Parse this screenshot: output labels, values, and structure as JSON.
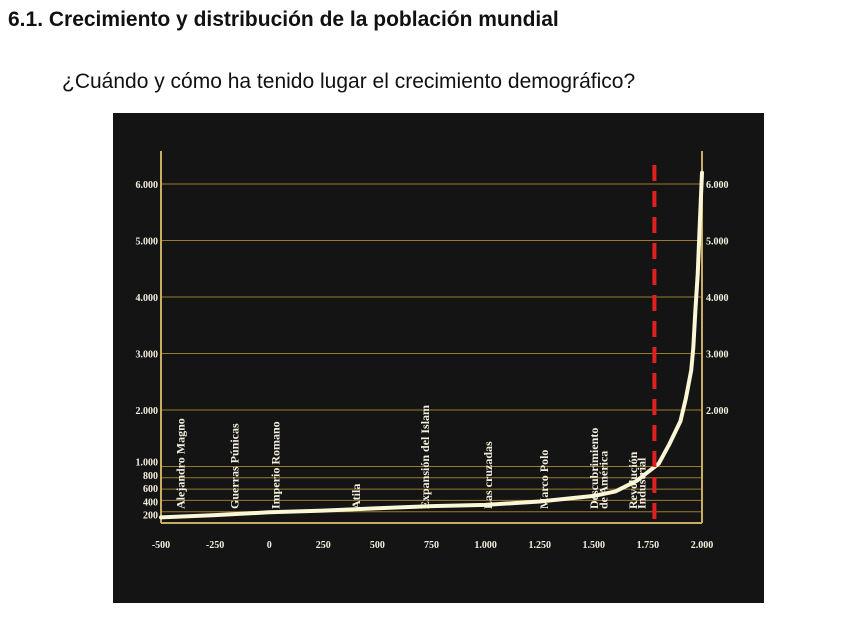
{
  "slide": {
    "title": "6.1. Crecimiento y distribución de la población mundial",
    "subtitle": "¿Cuándo y cómo ha tenido lugar el crecimiento demográfico?"
  },
  "colors": {
    "panel_background": "#141414",
    "gridline": "#9a7b2c",
    "axis": "#c9ad62",
    "curve": "#fbf6d6",
    "marker_line": "#e02020",
    "text": "#f3efdf"
  },
  "chart_data": {
    "type": "line",
    "title": "",
    "xlabel": "",
    "ylabel": "",
    "xlim": [
      -500,
      2000
    ],
    "ylim": [
      0,
      6500
    ],
    "grid": true,
    "x_ticks": [
      {
        "value": -500,
        "label": "-500"
      },
      {
        "value": -250,
        "label": "-250"
      },
      {
        "value": 0,
        "label": "0"
      },
      {
        "value": 250,
        "label": "250"
      },
      {
        "value": 500,
        "label": "500"
      },
      {
        "value": 750,
        "label": "750"
      },
      {
        "value": 1000,
        "label": "1.000"
      },
      {
        "value": 1250,
        "label": "1.250"
      },
      {
        "value": 1500,
        "label": "1.500"
      },
      {
        "value": 1750,
        "label": "1.750"
      },
      {
        "value": 2000,
        "label": "2.000"
      }
    ],
    "y_ticks_left": [
      {
        "value": 200,
        "label": "200"
      },
      {
        "value": 400,
        "label": "400"
      },
      {
        "value": 600,
        "label": "600"
      },
      {
        "value": 800,
        "label": "800"
      },
      {
        "value": 1000,
        "label": "1.000"
      },
      {
        "value": 2000,
        "label": "2.000"
      },
      {
        "value": 3000,
        "label": "3.000"
      },
      {
        "value": 4000,
        "label": "4.000"
      },
      {
        "value": 5000,
        "label": "5.000"
      },
      {
        "value": 6000,
        "label": "6.000"
      }
    ],
    "y_ticks_right": [
      {
        "value": 2000,
        "label": "2.000"
      },
      {
        "value": 3000,
        "label": "3.000"
      },
      {
        "value": 4000,
        "label": "4.000"
      },
      {
        "value": 5000,
        "label": "5.000"
      },
      {
        "value": 6000,
        "label": "6.000"
      }
    ],
    "gridlines_y": [
      200,
      400,
      600,
      800,
      1000,
      2000,
      3000,
      4000,
      5000,
      6000
    ],
    "series": [
      {
        "x": [
          -500,
          -250,
          0,
          250,
          500,
          750,
          1000,
          1250,
          1500,
          1600,
          1700,
          1750,
          1800,
          1850,
          1900,
          1925,
          1950,
          1960,
          1970,
          1980,
          1990,
          2000
        ],
        "values": [
          100,
          140,
          190,
          220,
          260,
          300,
          320,
          380,
          480,
          560,
          750,
          900,
          1050,
          1400,
          1800,
          2200,
          2700,
          3100,
          3800,
          4400,
          5300,
          6200
        ]
      }
    ],
    "reference_line": {
      "x": 1780,
      "style": "dashed"
    },
    "events": [
      {
        "label": "Alejandro Magno",
        "x": -410
      },
      {
        "label": "Guerras Púnicas",
        "x": -160
      },
      {
        "label": "Imperio Romano",
        "x": 30
      },
      {
        "label": "Atila",
        "x": 400
      },
      {
        "label": "Expansión del Islam",
        "x": 720
      },
      {
        "label": "Las cruzadas",
        "x": 1010
      },
      {
        "label": "Marco Polo",
        "x": 1270
      },
      {
        "label": "Descubrimiento",
        "x": 1500
      },
      {
        "label": "de América",
        "x": 1545
      },
      {
        "label": "Revolución",
        "x": 1680
      },
      {
        "label": "Industrial",
        "x": 1720
      }
    ]
  }
}
